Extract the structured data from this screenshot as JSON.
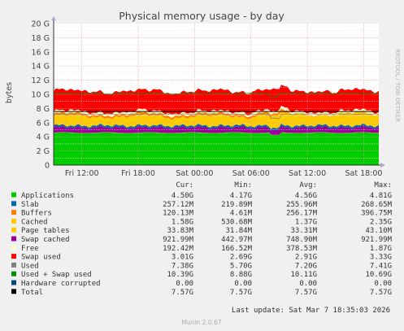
{
  "chart_data": {
    "type": "area",
    "title": "Physical memory usage - by day",
    "ylabel": "bytes",
    "side_label": "RRDTOOL / TOBI OETIKER",
    "ylim": [
      0,
      20
    ],
    "y_unit": "G",
    "y_ticks": [
      "0",
      "2 G",
      "4 G",
      "6 G",
      "8 G",
      "10 G",
      "12 G",
      "14 G",
      "16 G",
      "18 G",
      "20 G"
    ],
    "x_ticks": [
      "Fri 12:00",
      "Fri 18:00",
      "Sat 00:00",
      "Sat 06:00",
      "Sat 12:00",
      "Sat 18:00"
    ],
    "x_range_hours": [
      9,
      43.6
    ],
    "stack_order": [
      "Applications",
      "Page tables",
      "Swap cached",
      "Slab",
      "Cached",
      "Buffers",
      "Free",
      "Swap used"
    ],
    "series_colors": {
      "Applications": "#00cc00",
      "Page tables": "#ffcc00",
      "Swap cached": "#990099",
      "Slab": "#0066b3",
      "Cached": "#ffcc00",
      "Buffers": "#ff8000",
      "Free": "#ffffcc",
      "Swap used": "#ff0000",
      "Used": "#808080",
      "Used + Swap used": "#008f00",
      "Hardware corrupted": "#00487d",
      "Total": "#000000"
    },
    "columns": [
      "",
      "Cur:",
      "Min:",
      "Avg:",
      "Max:"
    ],
    "legend": [
      {
        "name": "Applications",
        "cur": "4.50G",
        "min": "4.17G",
        "avg": "4.56G",
        "max": "4.81G"
      },
      {
        "name": "Slab",
        "cur": "257.12M",
        "min": "219.89M",
        "avg": "255.96M",
        "max": "268.65M"
      },
      {
        "name": "Buffers",
        "cur": "120.13M",
        "min": "4.61M",
        "avg": "256.17M",
        "max": "396.75M"
      },
      {
        "name": "Cached",
        "cur": "1.58G",
        "min": "530.68M",
        "avg": "1.37G",
        "max": "2.35G"
      },
      {
        "name": "Page tables",
        "cur": "33.83M",
        "min": "31.84M",
        "avg": "33.31M",
        "max": "43.10M"
      },
      {
        "name": "Swap cached",
        "cur": "921.99M",
        "min": "442.97M",
        "avg": "748.90M",
        "max": "921.99M"
      },
      {
        "name": "Free",
        "cur": "192.42M",
        "min": "166.52M",
        "avg": "378.53M",
        "max": "1.87G"
      },
      {
        "name": "Swap used",
        "cur": "3.01G",
        "min": "2.69G",
        "avg": "2.91G",
        "max": "3.33G"
      },
      {
        "name": "Used",
        "cur": "7.38G",
        "min": "5.70G",
        "avg": "7.20G",
        "max": "7.41G"
      },
      {
        "name": "Used + Swap used",
        "cur": "10.39G",
        "min": "8.88G",
        "avg": "10.11G",
        "max": "10.69G"
      },
      {
        "name": "Hardware corrupted",
        "cur": "0.00",
        "min": "0.00",
        "avg": "0.00",
        "max": "0.00"
      },
      {
        "name": "Total",
        "cur": "7.57G",
        "min": "7.57G",
        "avg": "7.57G",
        "max": "7.57G"
      }
    ],
    "last_update": "Last update: Sat Mar  7 18:35:03 2026",
    "footer": "Munin 2.0.67"
  }
}
